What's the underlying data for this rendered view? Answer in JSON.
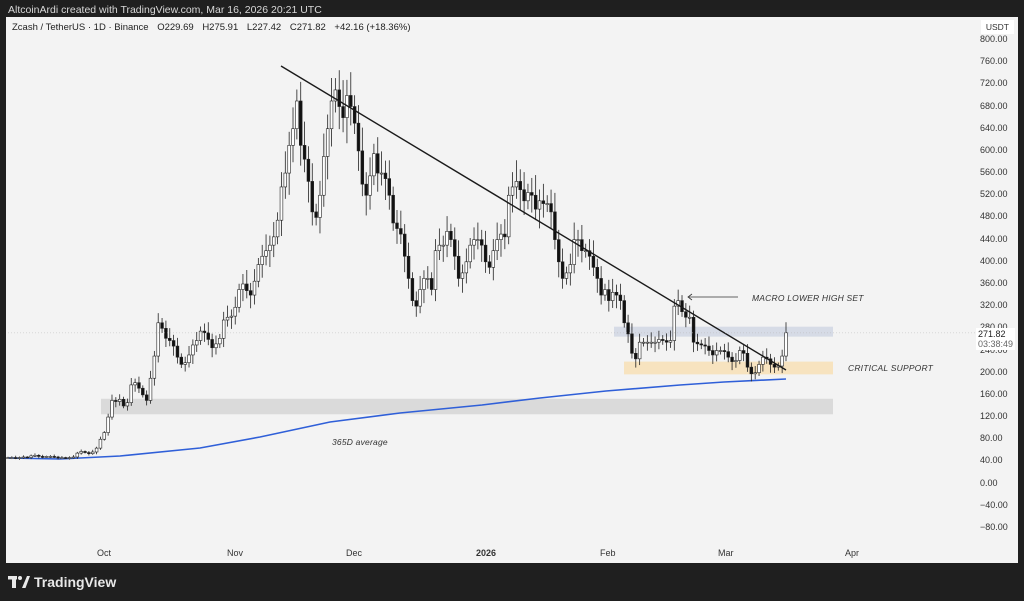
{
  "header": {
    "watermark": "AltcoinArdi created with TradingView.com, Mar 16, 2026 20:21 UTC"
  },
  "legend": {
    "symbol": "Zcash / TetherUS · 1D · Binance",
    "open": "O229.69",
    "high": "H275.91",
    "low": "L227.42",
    "close": "C271.82",
    "change": "+42.16 (+18.36%)"
  },
  "price_axis": {
    "unit": "USDT",
    "ticks": [
      "800.00",
      "760.00",
      "720.00",
      "680.00",
      "640.00",
      "600.00",
      "560.00",
      "520.00",
      "480.00",
      "440.00",
      "400.00",
      "360.00",
      "320.00",
      "280.00",
      "240.00",
      "200.00",
      "160.00",
      "120.00",
      "80.00",
      "40.00",
      "0.00",
      "−40.00",
      "−80.00"
    ],
    "last_price": "271.82",
    "countdown": "03:38:49"
  },
  "time_axis": {
    "labels": [
      "Oct",
      "Nov",
      "Dec",
      "2026",
      "Feb",
      "Mar",
      "Apr"
    ]
  },
  "annotations": {
    "lower_high": "MACRO LOWER HIGH SET",
    "support": "CRITICAL SUPPORT",
    "ma": "365D average"
  },
  "branding": {
    "name": "TradingView"
  },
  "colors": {
    "ma_line": "#2f5fd8",
    "support_zone": "#f7e3bf",
    "resistance_zone": "#d6dbe6",
    "demand_zone": "#dadada",
    "trendline": "#1a1a1a"
  },
  "chart_data": {
    "type": "candlestick",
    "title": "Zcash / TetherUS · 1D · Binance",
    "xlabel": "",
    "ylabel": "USDT",
    "ylim": [
      -80,
      800
    ],
    "x_ticks": [
      "Oct",
      "Nov",
      "Dec",
      "2026",
      "Feb",
      "Mar",
      "Apr"
    ],
    "last": {
      "open": 229.69,
      "high": 275.91,
      "low": 227.42,
      "close": 271.82,
      "change": 42.16,
      "change_pct": 18.36
    },
    "zones": [
      {
        "name": "resistance",
        "from": 265,
        "to": 283
      },
      {
        "name": "critical support",
        "from": 197,
        "to": 220
      },
      {
        "name": "demand",
        "from": 125,
        "to": 153
      }
    ],
    "trendline": {
      "from": {
        "date": "Nov 12",
        "price": 755
      },
      "to": {
        "date": "Mar 15",
        "price": 205
      }
    },
    "ma365": {
      "start": 45,
      "dec": 110,
      "jan": 150,
      "feb": 172,
      "mar": 184,
      "end": 188
    },
    "closes": [
      47,
      47,
      46,
      47,
      48,
      47,
      50,
      51,
      49,
      48,
      49,
      49,
      48,
      47,
      47,
      46,
      47,
      48,
      55,
      58,
      56,
      54,
      57,
      64,
      80,
      92,
      120,
      150,
      148,
      152,
      140,
      146,
      178,
      182,
      172,
      160,
      150,
      190,
      230,
      290,
      280,
      262,
      258,
      248,
      228,
      215,
      218,
      232,
      250,
      258,
      275,
      272,
      260,
      245,
      252,
      262,
      295,
      300,
      302,
      318,
      350,
      360,
      348,
      340,
      365,
      395,
      410,
      420,
      430,
      445,
      475,
      535,
      560,
      610,
      640,
      690,
      610,
      585,
      545,
      490,
      480,
      520,
      590,
      640,
      690,
      710,
      680,
      660,
      700,
      680,
      650,
      600,
      540,
      520,
      555,
      595,
      560,
      560,
      550,
      520,
      470,
      460,
      450,
      410,
      370,
      330,
      320,
      350,
      370,
      370,
      350,
      420,
      430,
      430,
      455,
      440,
      410,
      370,
      380,
      400,
      430,
      440,
      440,
      430,
      400,
      390,
      420,
      440,
      450,
      445,
      520,
      535,
      545,
      530,
      510,
      525,
      520,
      495,
      510,
      505,
      505,
      490,
      440,
      400,
      370,
      380,
      395,
      440,
      440,
      420,
      420,
      410,
      390,
      370,
      340,
      350,
      330,
      345,
      340,
      330,
      290,
      270,
      235,
      225,
      255,
      255,
      255,
      255,
      255,
      260,
      258,
      255,
      258,
      320,
      330,
      310,
      300,
      300,
      255,
      252,
      250,
      248,
      240,
      232,
      240,
      240,
      238,
      228,
      220,
      222,
      240,
      235,
      210,
      198,
      200,
      215,
      228,
      225,
      215,
      210,
      212,
      230,
      272
    ]
  }
}
